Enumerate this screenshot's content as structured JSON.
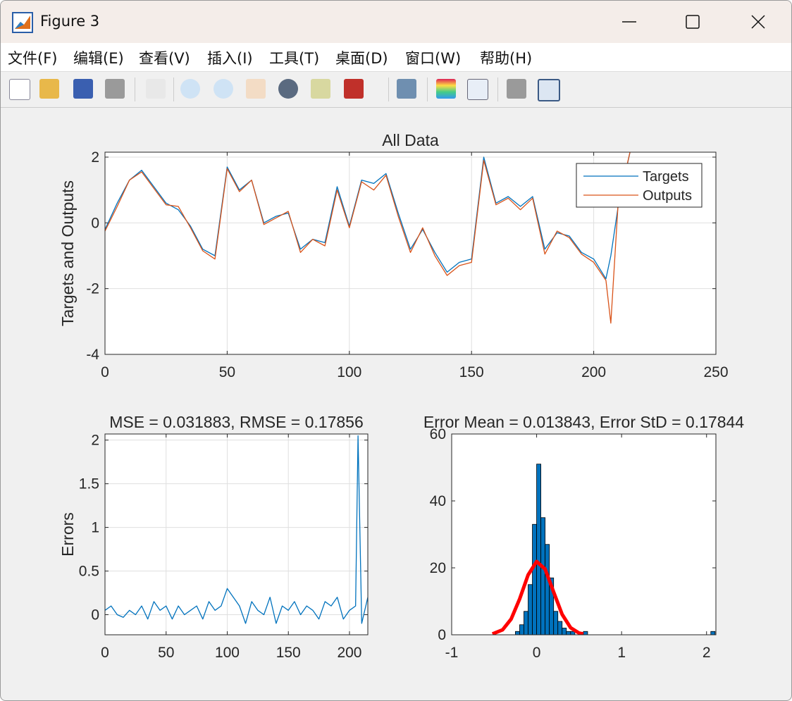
{
  "window": {
    "title": "Figure 3",
    "menu": [
      "文件(F)",
      "编辑(E)",
      "查看(V)",
      "插入(I)",
      "工具(T)",
      "桌面(D)",
      "窗口(W)",
      "帮助(H)"
    ]
  },
  "chart_data": [
    {
      "type": "line",
      "title": "All Data",
      "y_label": "Targets and Outputs",
      "x": [
        0,
        5,
        10,
        15,
        20,
        25,
        30,
        35,
        40,
        45,
        50,
        55,
        60,
        65,
        70,
        75,
        80,
        85,
        90,
        95,
        100,
        105,
        110,
        115,
        120,
        125,
        130,
        135,
        140,
        145,
        150,
        155,
        160,
        165,
        170,
        175,
        180,
        185,
        190,
        195,
        200,
        205,
        207,
        210,
        215
      ],
      "series": [
        {
          "name": "Targets",
          "color": "#0072bd",
          "values": [
            -0.2,
            0.6,
            1.3,
            1.6,
            1.1,
            0.6,
            0.4,
            -0.1,
            -0.8,
            -1.0,
            1.7,
            1.0,
            1.3,
            0.0,
            0.2,
            0.3,
            -0.8,
            -0.5,
            -0.6,
            1.1,
            -0.1,
            1.3,
            1.2,
            1.5,
            0.3,
            -0.8,
            -0.2,
            -0.9,
            -1.5,
            -1.2,
            -1.1,
            2.0,
            0.6,
            0.8,
            0.5,
            0.8,
            -0.8,
            -0.3,
            -0.4,
            -0.9,
            -1.1,
            -1.7,
            -1.0,
            0.5,
            2.2
          ]
        },
        {
          "name": "Outputs",
          "color": "#d95319",
          "values": [
            -0.25,
            0.5,
            1.3,
            1.55,
            1.05,
            0.55,
            0.5,
            -0.15,
            -0.85,
            -1.1,
            1.65,
            0.95,
            1.3,
            -0.05,
            0.15,
            0.35,
            -0.9,
            -0.5,
            -0.7,
            1.0,
            -0.15,
            1.25,
            1.0,
            1.45,
            0.2,
            -0.9,
            -0.15,
            -1.0,
            -1.6,
            -1.3,
            -1.2,
            1.9,
            0.55,
            0.75,
            0.4,
            0.75,
            -0.95,
            -0.25,
            -0.45,
            -0.95,
            -1.2,
            -1.75,
            -3.05,
            0.6,
            2.2
          ]
        }
      ],
      "xlim": [
        0,
        250
      ],
      "xticks": [
        0,
        50,
        100,
        150,
        200,
        250
      ],
      "ylim": [
        -4,
        2.15
      ],
      "yticks": [
        -4,
        -2,
        0,
        2
      ],
      "grid": true,
      "legend": "northeast"
    },
    {
      "type": "line",
      "title": "MSE = 0.031883, RMSE = 0.17856",
      "y_label": "Errors",
      "x": [
        0,
        5,
        10,
        15,
        20,
        25,
        30,
        35,
        40,
        45,
        50,
        55,
        60,
        65,
        70,
        75,
        80,
        85,
        90,
        95,
        100,
        105,
        110,
        115,
        120,
        125,
        130,
        135,
        140,
        145,
        150,
        155,
        160,
        165,
        170,
        175,
        180,
        185,
        190,
        195,
        200,
        205,
        207,
        210,
        215
      ],
      "series": [
        {
          "color": "#0072bd",
          "values": [
            0.05,
            0.1,
            0.0,
            -0.03,
            0.05,
            0.0,
            0.1,
            -0.05,
            0.15,
            0.05,
            0.1,
            -0.05,
            0.1,
            0.0,
            0.05,
            0.1,
            -0.05,
            0.15,
            0.05,
            0.1,
            0.3,
            0.2,
            0.1,
            -0.1,
            0.15,
            0.05,
            0.0,
            0.2,
            -0.1,
            0.1,
            0.05,
            0.15,
            0.0,
            0.1,
            0.05,
            -0.05,
            0.15,
            0.1,
            0.2,
            -0.05,
            0.05,
            0.1,
            2.05,
            -0.1,
            0.2
          ]
        }
      ],
      "xlim": [
        0,
        215
      ],
      "xticks": [
        0,
        50,
        100,
        150,
        200
      ],
      "ylim": [
        -0.23,
        2.07
      ],
      "yticks": [
        0,
        0.5,
        1,
        1.5,
        2
      ],
      "grid": true
    },
    {
      "type": "histogram",
      "title": "Error Mean = 0.013843, Error StD = 0.17844",
      "bins": [
        -0.25,
        -0.2,
        -0.15,
        -0.1,
        -0.05,
        0,
        0.05,
        0.1,
        0.15,
        0.2,
        0.25,
        0.3,
        0.35,
        0.4,
        0.45,
        0.5,
        0.55,
        0.6,
        0.65,
        0.7,
        0.75,
        0.8,
        0.85,
        0.9,
        0.95,
        1,
        1.05,
        1.1,
        1.15,
        1.2,
        1.25,
        1.3,
        1.35,
        1.4,
        1.45,
        1.5,
        1.55,
        1.6,
        1.65,
        1.7,
        1.75,
        1.8,
        1.85,
        1.9,
        1.95,
        2,
        2.05,
        2.1
      ],
      "values": [
        1,
        3,
        7,
        15,
        33,
        51,
        35,
        27,
        17,
        7,
        4,
        2,
        1,
        1,
        0,
        0,
        1,
        0,
        0,
        0,
        0,
        0,
        0,
        0,
        0,
        0,
        0,
        0,
        0,
        0,
        0,
        0,
        0,
        0,
        0,
        0,
        0,
        0,
        0,
        0,
        0,
        0,
        0,
        0,
        0,
        0,
        1
      ],
      "color": "#0072bd",
      "fit": {
        "color": "#ff0000",
        "x": [
          -0.52,
          -0.4,
          -0.3,
          -0.2,
          -0.1,
          0,
          0.1,
          0.2,
          0.3,
          0.4,
          0.5,
          0.55
        ],
        "values": [
          0.25,
          1.5,
          4.7,
          10.7,
          17.9,
          21.9,
          19.6,
          12.8,
          6.1,
          2.1,
          0.5,
          0.24
        ]
      },
      "xlim": [
        -1,
        2.11
      ],
      "xticks": [
        -1,
        0,
        1,
        2
      ],
      "ylim": [
        0,
        60
      ],
      "yticks": [
        0,
        20,
        40,
        60
      ],
      "grid": false
    }
  ]
}
